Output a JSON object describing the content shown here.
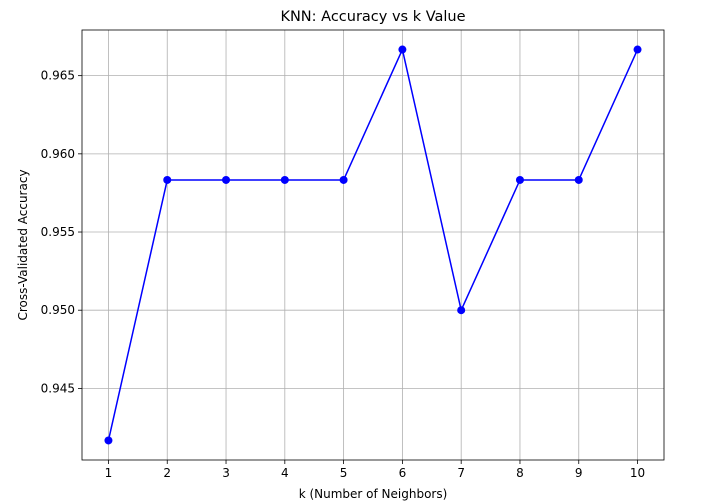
{
  "chart_data": {
    "type": "line",
    "title": "KNN: Accuracy vs k Value",
    "xlabel": "k (Number of Neighbors)",
    "ylabel": "Cross-Validated Accuracy",
    "x": [
      1,
      2,
      3,
      4,
      5,
      6,
      7,
      8,
      9,
      10
    ],
    "series": [
      {
        "values": [
          0.94167,
          0.95833,
          0.95833,
          0.95833,
          0.95833,
          0.96667,
          0.95,
          0.95833,
          0.95833,
          0.96667
        ]
      }
    ],
    "xticks": [
      "1",
      "2",
      "3",
      "4",
      "5",
      "6",
      "7",
      "8",
      "9",
      "10"
    ],
    "yticks": [
      {
        "value": 0.945,
        "label": "0.945"
      },
      {
        "value": 0.95,
        "label": "0.950"
      },
      {
        "value": 0.955,
        "label": "0.955"
      },
      {
        "value": 0.96,
        "label": "0.960"
      },
      {
        "value": 0.965,
        "label": "0.965"
      }
    ],
    "xlim": [
      0.55,
      10.45
    ],
    "ylim": [
      0.94042,
      0.96792
    ],
    "grid": true,
    "line_color": "#0000ff",
    "marker": "circle"
  }
}
